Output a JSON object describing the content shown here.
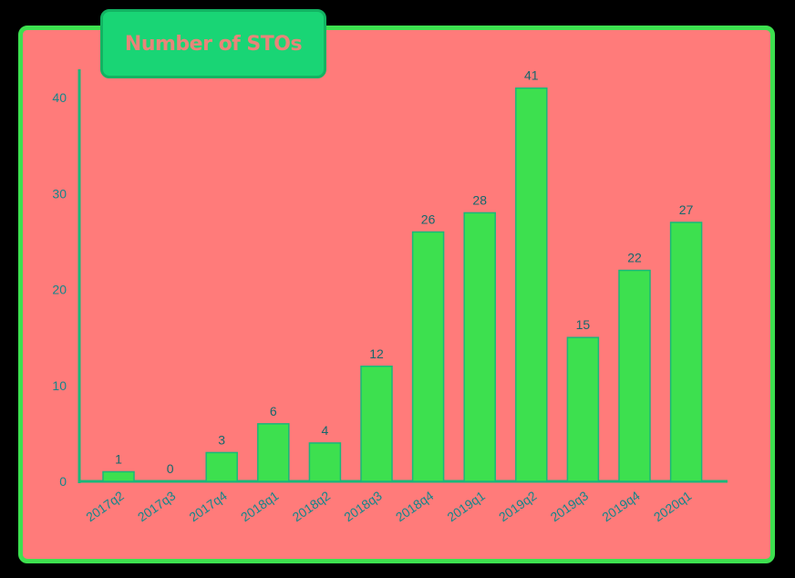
{
  "title": "Number of STOs",
  "colors": {
    "background": "#000000",
    "panel": "#FF7B7A",
    "panel_border": "#3DE04F",
    "title_tab": "#19D575",
    "bar": "#3DE04F",
    "axis": "#19B87A",
    "tick_text": "#14868A"
  },
  "chart_data": {
    "type": "bar",
    "title": "Number of STOs",
    "xlabel": "",
    "ylabel": "",
    "categories": [
      "2017q2",
      "2017q3",
      "2017q4",
      "2018q1",
      "2018q2",
      "2018q3",
      "2018q4",
      "2019q1",
      "2019q2",
      "2019q3",
      "2019q4",
      "2020q1"
    ],
    "values": [
      1,
      0,
      3,
      6,
      4,
      12,
      26,
      28,
      41,
      15,
      22,
      27
    ],
    "ylim": [
      0,
      43
    ],
    "yticks": [
      0,
      10,
      20,
      30,
      40
    ],
    "grid": false,
    "legend": "none",
    "data_labels": true
  }
}
